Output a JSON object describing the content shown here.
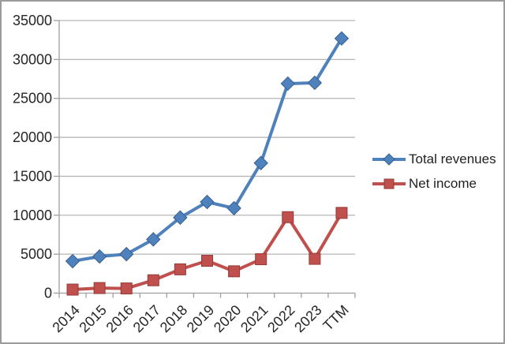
{
  "chart_data": {
    "type": "line",
    "title": "",
    "categories": [
      "2014",
      "2015",
      "2016",
      "2017",
      "2018",
      "2019",
      "2020",
      "2021",
      "2022",
      "2023",
      "TTM"
    ],
    "series": [
      {
        "name": "Total revenues",
        "marker": "diamond",
        "color": "#4f81bd",
        "marker_stroke": "#36618f",
        "values": [
          4100,
          4700,
          5000,
          6900,
          9700,
          11700,
          10900,
          16700,
          26900,
          27000,
          32700
        ]
      },
      {
        "name": "Net income",
        "marker": "square",
        "color": "#c0504d",
        "marker_stroke": "#953a38",
        "values": [
          450,
          650,
          600,
          1650,
          3050,
          4150,
          2800,
          4350,
          9750,
          4400,
          10300
        ]
      }
    ],
    "xlabel": "",
    "ylabel": "",
    "ylim": [
      0,
      35000
    ],
    "y_step": 5000,
    "y_tick_labels": [
      "0",
      "5000",
      "10000",
      "15000",
      "20000",
      "25000",
      "30000",
      "35000"
    ],
    "grid": true,
    "legend_position": "right",
    "x_tick_rotation_deg": 45
  },
  "colors": {
    "gridline": "#b6b6b6",
    "axis": "#9f9f9f",
    "tick_text": "#262626",
    "frame_border": "#9b9b9b",
    "background": "#ffffff"
  }
}
